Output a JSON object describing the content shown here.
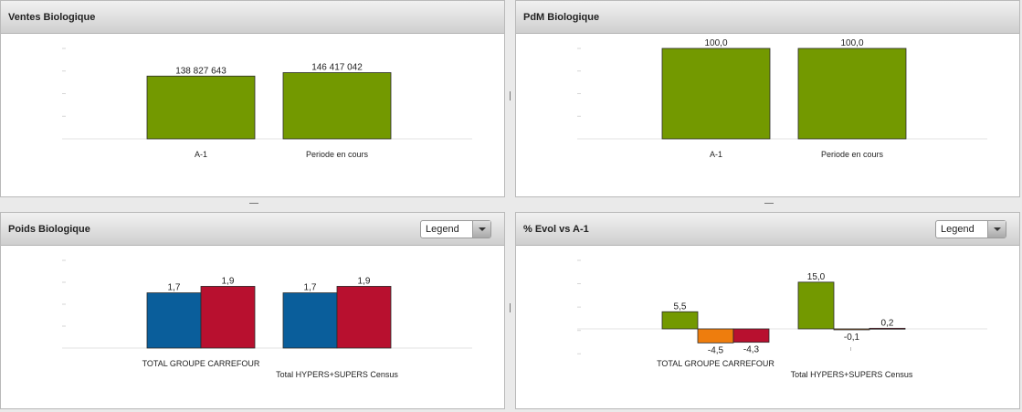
{
  "panels": [
    {
      "title": "Ventes Biologique",
      "legend_select": "",
      "chart_data": {
        "type": "bar",
        "categories": [
          "A-1",
          "Periode en cours"
        ],
        "series": [
          {
            "values": [
              138827643,
              146417042
            ],
            "color": "#739900",
            "labels": [
              "138 827 643",
              "146 417 042"
            ]
          }
        ],
        "ylim": [
          0,
          200000000
        ]
      }
    },
    {
      "title": "PdM Biologique",
      "legend_select": "",
      "chart_data": {
        "type": "bar",
        "categories": [
          "A-1",
          "Periode en cours"
        ],
        "series": [
          {
            "values": [
              100.0,
              100.0
            ],
            "color": "#739900",
            "labels": [
              "100,0",
              "100,0"
            ]
          }
        ],
        "ylim": [
          0,
          100
        ]
      }
    },
    {
      "title": "Poids Biologique",
      "legend_select": "Legend",
      "chart_data": {
        "type": "bar",
        "categories": [
          "TOTAL GROUPE CARREFOUR",
          "Total HYPERS+SUPERS Census"
        ],
        "series": [
          {
            "values": [
              1.7,
              1.7
            ],
            "color": "#0a5e9b",
            "labels": [
              "1,7",
              "1,7"
            ]
          },
          {
            "values": [
              1.9,
              1.9
            ],
            "color": "#b8102f",
            "labels": [
              "1,9",
              "1,9"
            ]
          }
        ],
        "ylim": [
          0,
          2.7
        ]
      }
    },
    {
      "title": "% Evol vs A-1",
      "legend_select": "Legend",
      "chart_data": {
        "type": "bar",
        "categories": [
          "TOTAL GROUPE CARREFOUR",
          "Total HYPERS+SUPERS Census"
        ],
        "series": [
          {
            "values": [
              5.5,
              15.0
            ],
            "color": "#739900",
            "labels": [
              "5,5",
              "15,0"
            ]
          },
          {
            "values": [
              -4.5,
              -0.1
            ],
            "color": "#ee7d0d",
            "labels": [
              "-4,5",
              "-0,1"
            ]
          },
          {
            "values": [
              -4.3,
              0.2
            ],
            "color": "#b8102f",
            "labels": [
              "-4,3",
              "0,2"
            ]
          }
        ],
        "ylim": [
          -8,
          22
        ]
      }
    }
  ]
}
